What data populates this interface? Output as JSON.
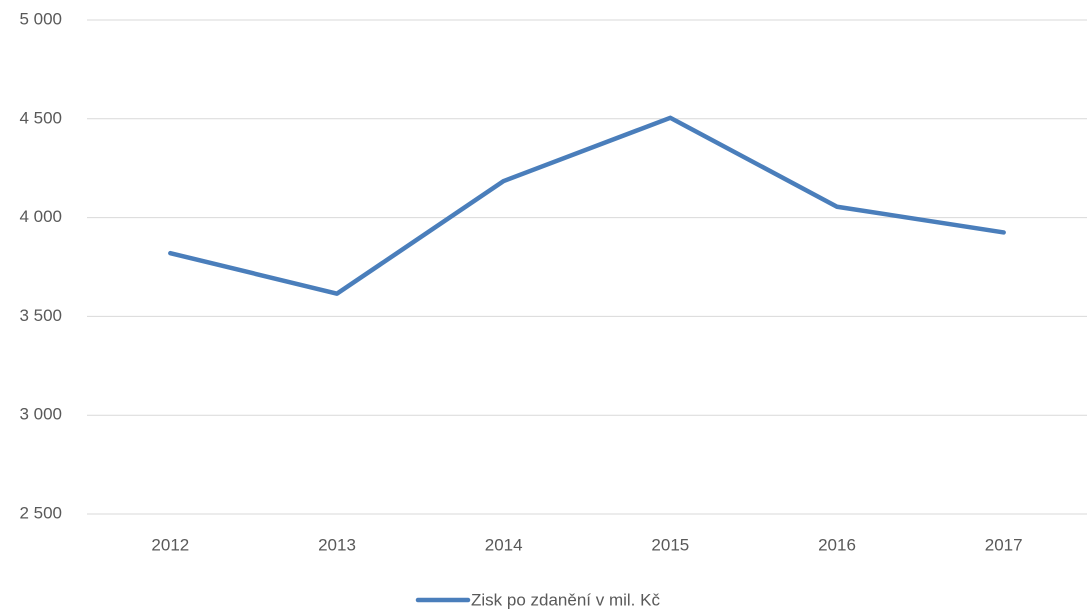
{
  "chart_data": {
    "type": "line",
    "categories": [
      "2012",
      "2013",
      "2014",
      "2015",
      "2016",
      "2017"
    ],
    "series": [
      {
        "name": "Zisk po zdanění v mil. Kč",
        "color": "#4a7ebb",
        "values": [
          3820,
          3615,
          4185,
          4505,
          4055,
          3925
        ]
      }
    ],
    "ylim": [
      2500,
      5000
    ],
    "yticks": [
      {
        "value": 2500,
        "label": "2 500"
      },
      {
        "value": 3000,
        "label": "3 000"
      },
      {
        "value": 3500,
        "label": "3 500"
      },
      {
        "value": 4000,
        "label": "4 000"
      },
      {
        "value": 4500,
        "label": "4 500"
      },
      {
        "value": 5000,
        "label": "5 000"
      }
    ],
    "grid": true,
    "legend": "bottom"
  }
}
